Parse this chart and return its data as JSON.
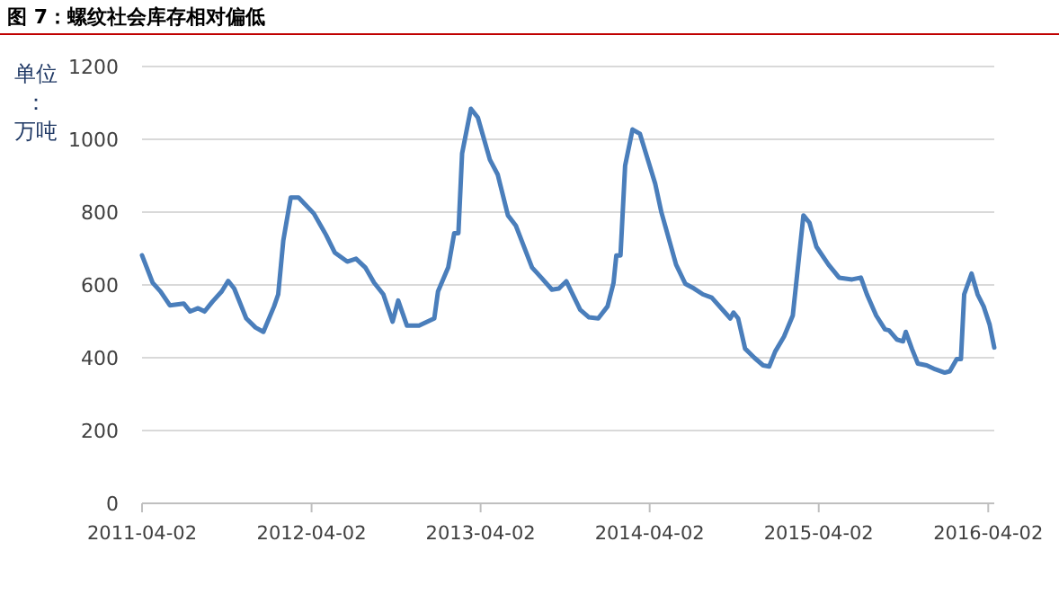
{
  "chart_data": {
    "type": "line",
    "title": "图 7：螺纹社会库存相对偏低",
    "ylabel": "单位：万吨",
    "xlim": [
      "2011-04-02",
      "2016-04-15"
    ],
    "xticks": [
      "2011-04-02",
      "2012-04-02",
      "2013-04-02",
      "2014-04-02",
      "2015-04-02",
      "2016-04-02"
    ],
    "ylim": [
      0,
      1200
    ],
    "yticks": [
      0,
      200,
      400,
      600,
      800,
      1000,
      1200
    ],
    "grid": "y",
    "marker": "none",
    "line_style": "solid",
    "series": [
      {
        "color": "#4a7ebb",
        "x": [
          "2011-04-02",
          "2011-04-25",
          "2011-05-12",
          "2011-06-01",
          "2011-07-01",
          "2011-07-15",
          "2011-08-01",
          "2011-08-15",
          "2011-09-01",
          "2011-09-21",
          "2011-10-05",
          "2011-10-18",
          "2011-11-13",
          "2011-12-03",
          "2011-12-20",
          "2012-01-12",
          "2012-01-21",
          "2012-02-01",
          "2012-02-17",
          "2012-03-05",
          "2012-04-07",
          "2012-05-03",
          "2012-05-22",
          "2012-06-18",
          "2012-07-07",
          "2012-07-27",
          "2012-08-15",
          "2012-09-04",
          "2012-09-24",
          "2012-10-06",
          "2012-10-25",
          "2012-11-20",
          "2012-12-23",
          "2012-12-31",
          "2013-01-22",
          "2013-02-04",
          "2013-02-13",
          "2013-02-21",
          "2013-03-12",
          "2013-03-27",
          "2013-04-22",
          "2013-05-09",
          "2013-05-31",
          "2013-06-17",
          "2013-07-22",
          "2013-08-11",
          "2013-09-03",
          "2013-09-18",
          "2013-10-04",
          "2013-11-03",
          "2013-11-22",
          "2013-12-12",
          "2014-01-01",
          "2014-01-14",
          "2014-01-20",
          "2014-01-29",
          "2014-02-08",
          "2014-02-24",
          "2014-03-12",
          "2014-04-14",
          "2014-04-27",
          "2014-05-29",
          "2014-06-18",
          "2014-07-07",
          "2014-07-26",
          "2014-08-14",
          "2014-09-23",
          "2014-09-30",
          "2014-10-10",
          "2014-10-25",
          "2014-11-14",
          "2014-12-03",
          "2014-12-16",
          "2014-12-29",
          "2015-01-17",
          "2015-02-05",
          "2015-02-18",
          "2015-02-28",
          "2015-03-13",
          "2015-03-28",
          "2015-04-23",
          "2015-05-16",
          "2015-06-13",
          "2015-07-02",
          "2015-07-15",
          "2015-08-04",
          "2015-08-23",
          "2015-09-01",
          "2015-09-18",
          "2015-10-01",
          "2015-10-07",
          "2015-10-20",
          "2015-11-02",
          "2015-11-21",
          "2015-12-10",
          "2015-12-30",
          "2016-01-10",
          "2016-01-25",
          "2016-02-03",
          "2016-02-10",
          "2016-02-26",
          "2016-03-10",
          "2016-03-23",
          "2016-04-05",
          "2016-04-15"
        ],
        "values": [
          681,
          606,
          582,
          544,
          549,
          527,
          536,
          527,
          554,
          582,
          611,
          590,
          508,
          483,
          471,
          541,
          574,
          722,
          840,
          840,
          796,
          738,
          689,
          664,
          672,
          648,
          606,
          574,
          499,
          557,
          488,
          488,
          508,
          582,
          648,
          742,
          742,
          961,
          1084,
          1060,
          944,
          903,
          791,
          763,
          648,
          620,
          587,
          590,
          610,
          532,
          511,
          508,
          541,
          606,
          681,
          681,
          928,
          1027,
          1015,
          878,
          801,
          656,
          603,
          590,
          574,
          565,
          508,
          524,
          508,
          425,
          400,
          379,
          376,
          417,
          458,
          516,
          672,
          791,
          771,
          705,
          656,
          620,
          615,
          620,
          574,
          516,
          478,
          475,
          450,
          445,
          471,
          425,
          384,
          379,
          368,
          359,
          363,
          396,
          396,
          574,
          631,
          574,
          541,
          491,
          428
        ]
      }
    ]
  }
}
